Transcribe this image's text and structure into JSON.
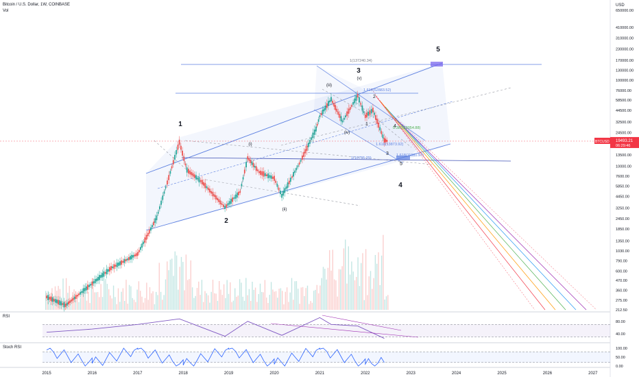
{
  "header": {
    "symbol_line": "Bitcoin / U.S. Dollar, 1W, COINBASE",
    "vol_label": "Vol",
    "currency": "USD"
  },
  "price_tag": {
    "symbol": "BTCUSD",
    "price": "19493.21",
    "countdown": "06:29:46",
    "color": "#f23645"
  },
  "chart_data": [
    {
      "type": "line",
      "title": "",
      "description_series": "BTCUSD weekly candlesticks (approximate close path)",
      "scale": "log",
      "x": [
        "2015-01",
        "2015-06",
        "2016-01",
        "2016-06",
        "2017-01",
        "2017-06",
        "2017-12",
        "2018-02",
        "2018-06",
        "2018-12",
        "2019-04",
        "2019-06",
        "2019-09",
        "2020-01",
        "2020-03",
        "2020-08",
        "2020-12",
        "2021-01",
        "2021-04",
        "2021-07",
        "2021-11",
        "2022-01",
        "2022-03",
        "2022-06",
        "2022-07"
      ],
      "series": [
        {
          "values": [
            300,
            240,
            430,
            650,
            950,
            2500,
            19000,
            9000,
            6500,
            3300,
            5000,
            12500,
            8500,
            7200,
            4500,
            11500,
            27000,
            38000,
            60000,
            33000,
            66000,
            38000,
            45000,
            20000,
            19493
          ]
        }
      ],
      "yaxis_ticks": [
        "650000.00",
        "410000.00",
        "310000.00",
        "230000.00",
        "170000.00",
        "130000.00",
        "100000.00",
        "76000.00",
        "58500.00",
        "44500.00",
        "32500.00",
        "24500.00",
        "19500.00",
        "13500.00",
        "10000.00",
        "7600.00",
        "5850.00",
        "4450.00",
        "3250.00",
        "2450.00",
        "1850.00",
        "1350.00",
        "1030.00",
        "790.00",
        "600.00",
        "470.00",
        "360.00",
        "275.00",
        "212.50"
      ],
      "ytick_values": [
        650000,
        410000,
        310000,
        230000,
        170000,
        130000,
        100000,
        76000,
        58500,
        44500,
        32500,
        24500,
        19500,
        13500,
        10000,
        7600,
        5850,
        4450,
        3250,
        2450,
        1850,
        1350,
        1030,
        790,
        600,
        470,
        360,
        275,
        212.5
      ],
      "xaxis_ticks": [
        "2015",
        "2016",
        "2017",
        "2018",
        "2019",
        "2020",
        "2021",
        "2022",
        "2023",
        "2024",
        "2025",
        "2026",
        "2027"
      ],
      "ylim": [
        212.5,
        650000
      ],
      "wave_labels": [
        "1",
        "2",
        "3",
        "4",
        "5",
        "(i)",
        "(ii)",
        "(iii)",
        "(iv)",
        "(v)",
        "1",
        "2",
        "3",
        "4",
        "5"
      ],
      "annotations": [
        "1(137240.34)",
        "1.618(62883.52)",
        "0.382(23054.88)",
        "1.618(13873.92)",
        "1(10755.29)",
        "1.618(11881.97)"
      ],
      "colors": {
        "up": "#26a69a",
        "down": "#ef5350",
        "channel": "#5b7fe0",
        "pitchfork": [
          "#f23645",
          "#ff9800",
          "#4caf50",
          "#2196f3",
          "#9c27b0"
        ]
      },
      "grid": false
    },
    {
      "type": "line",
      "title": "",
      "panel_label": "RSI",
      "yaxis_ticks": [
        "80.00",
        "40.00"
      ],
      "x": [
        "2015-01",
        "2016-01",
        "2017-01",
        "2017-12",
        "2018-12",
        "2019-06",
        "2020-03",
        "2021-01",
        "2021-04",
        "2021-11",
        "2022-06"
      ],
      "series": [
        {
          "values": [
            45,
            55,
            70,
            88,
            32,
            80,
            35,
            92,
            70,
            65,
            25
          ]
        }
      ],
      "ylim": [
        20,
        95
      ],
      "color": "#7e57c2",
      "band": [
        30,
        70
      ]
    },
    {
      "type": "line",
      "title": "",
      "panel_label": "Stoch RSI",
      "yaxis_ticks": [
        "100.00",
        "50.00",
        "0.00"
      ],
      "x": [
        "2015-01",
        "2016-01",
        "2017-01",
        "2018-01",
        "2019-01",
        "2020-01",
        "2021-01",
        "2022-01",
        "2022-06"
      ],
      "series": [
        {
          "values": [
            90,
            15,
            95,
            5,
            95,
            10,
            95,
            10,
            20
          ]
        }
      ],
      "ylim": [
        0,
        100
      ],
      "color": "#2962ff",
      "band": [
        20,
        80
      ]
    }
  ]
}
